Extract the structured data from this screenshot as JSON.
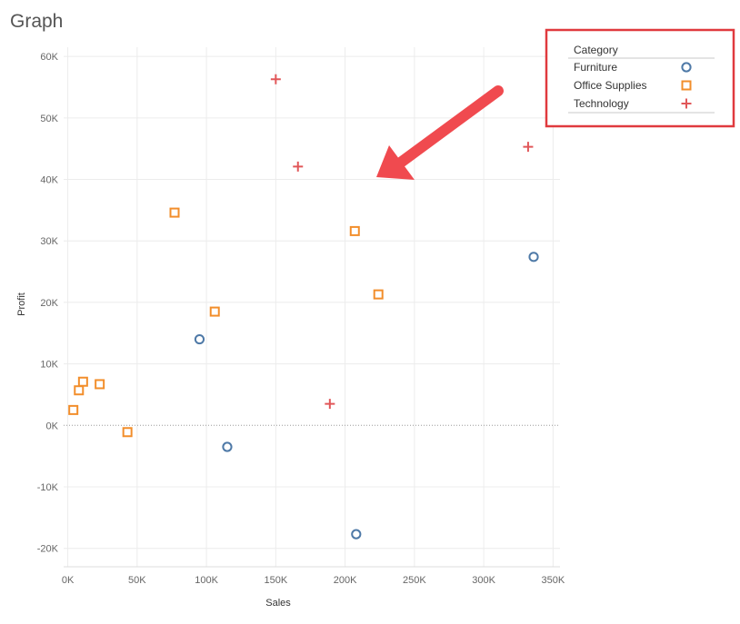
{
  "page": {
    "title": "Graph"
  },
  "chart_data": {
    "type": "scatter",
    "title": "",
    "xlabel": "Sales",
    "ylabel": "Profit",
    "xlim": [
      -3000,
      355000
    ],
    "ylim": [
      -23000,
      61500
    ],
    "x_ticks": [
      0,
      50000,
      100000,
      150000,
      200000,
      250000,
      300000,
      350000
    ],
    "x_tick_labels": [
      "0K",
      "50K",
      "100K",
      "150K",
      "200K",
      "250K",
      "300K",
      "350K"
    ],
    "y_ticks": [
      -20000,
      -10000,
      0,
      10000,
      20000,
      30000,
      40000,
      50000,
      60000
    ],
    "y_tick_labels": [
      "-20K",
      "-10K",
      "0K",
      "10K",
      "20K",
      "30K",
      "40K",
      "50K",
      "60K"
    ],
    "grid": true,
    "zero_line": true,
    "legend": {
      "title": "Category",
      "position": "top-right",
      "highlighted": true,
      "highlight_color": "#e03a3e"
    },
    "annotation": {
      "type": "arrow",
      "color": "#f04a4f",
      "points_to": "legend"
    },
    "series": [
      {
        "name": "Furniture",
        "marker": "circle",
        "color": "#4e79a7",
        "points": [
          {
            "x": 95000,
            "y": 14000
          },
          {
            "x": 115000,
            "y": -3500
          },
          {
            "x": 208000,
            "y": -17700
          },
          {
            "x": 336000,
            "y": 27400
          }
        ]
      },
      {
        "name": "Office Supplies",
        "marker": "square",
        "color": "#f28e2b",
        "points": [
          {
            "x": 4000,
            "y": 2500
          },
          {
            "x": 8000,
            "y": 5700
          },
          {
            "x": 11000,
            "y": 7100
          },
          {
            "x": 23000,
            "y": 6700
          },
          {
            "x": 43000,
            "y": -1100
          },
          {
            "x": 77000,
            "y": 34600
          },
          {
            "x": 106000,
            "y": 18500
          },
          {
            "x": 207000,
            "y": 31600
          },
          {
            "x": 224000,
            "y": 21300
          }
        ]
      },
      {
        "name": "Technology",
        "marker": "plus",
        "color": "#e15759",
        "points": [
          {
            "x": 150000,
            "y": 56300
          },
          {
            "x": 166000,
            "y": 42100
          },
          {
            "x": 189000,
            "y": 3500
          },
          {
            "x": 332000,
            "y": 45300
          }
        ]
      }
    ]
  }
}
